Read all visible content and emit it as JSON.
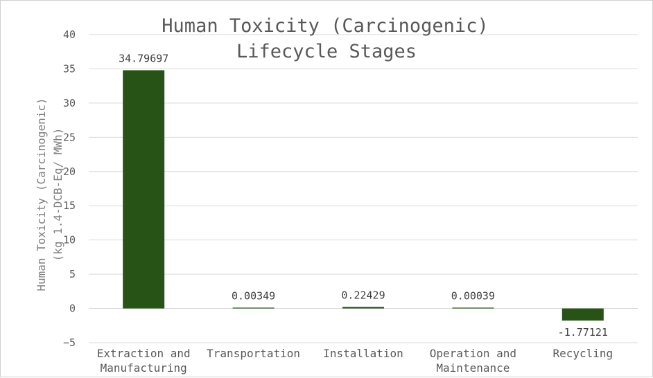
{
  "chart_data": {
    "type": "bar",
    "title_lines": [
      "Human Toxicity (Carcinogenic)",
      "Lifecycle Stages"
    ],
    "ylabel_lines": [
      "Human Toxicity (Carcinogenic)",
      "(kg  1.4-DCB-Eq/ MWh)"
    ],
    "xlabel": "",
    "categories": [
      [
        "Extraction and",
        "Manufacturing"
      ],
      [
        "Transportation"
      ],
      [
        "Installation"
      ],
      [
        "Operation and",
        "Maintenance"
      ],
      [
        "Recycling"
      ]
    ],
    "values": [
      34.79697,
      0.00349,
      0.22429,
      0.00039,
      -1.77121
    ],
    "data_labels": [
      "34.79697",
      "0.00349",
      "0.22429",
      "0.00039",
      "-1.77121"
    ],
    "ylim": [
      -5,
      40
    ],
    "yticks": [
      -5,
      0,
      5,
      10,
      15,
      20,
      25,
      30,
      35,
      40
    ],
    "ytick_labels": [
      "−5",
      "0",
      "5",
      "10",
      "15",
      "20",
      "25",
      "30",
      "35",
      "40"
    ],
    "grid": true,
    "legend": "none",
    "colors": {
      "bar": "#275317",
      "grid": "#d9d9d9",
      "text": "#595959"
    }
  }
}
